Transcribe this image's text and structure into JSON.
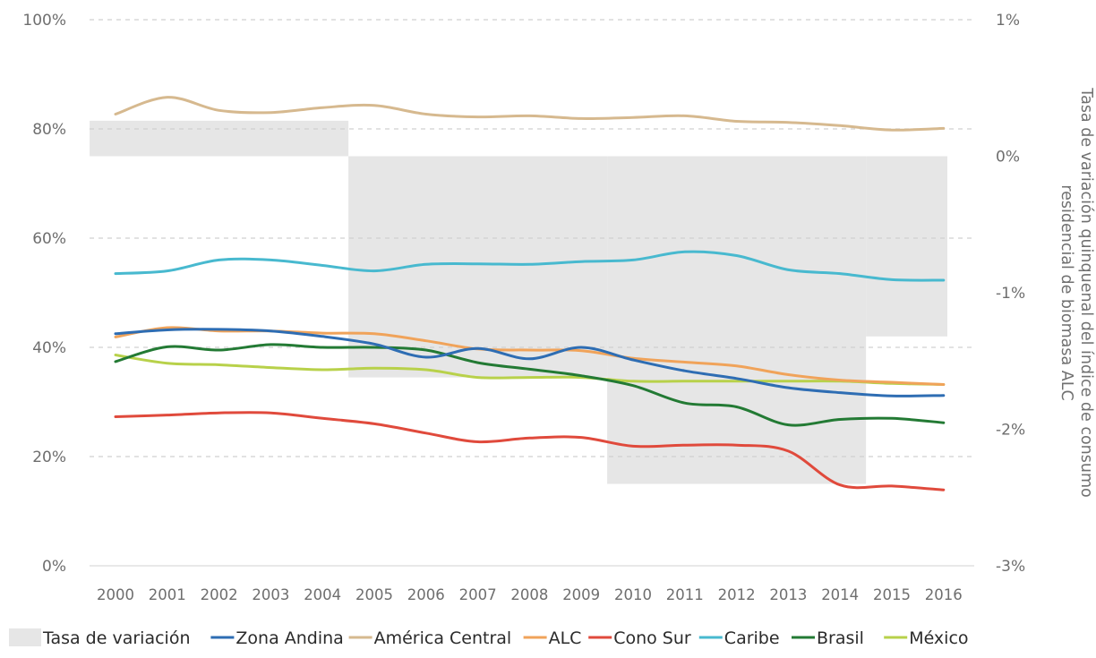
{
  "chart_data": {
    "type": "line",
    "categories": [
      "2000",
      "2001",
      "2002",
      "2003",
      "2004",
      "2005",
      "2006",
      "2007",
      "2008",
      "2009",
      "2010",
      "2011",
      "2012",
      "2013",
      "2014",
      "2015",
      "2016"
    ],
    "y_left": {
      "ticks": [
        "0%",
        "20%",
        "40%",
        "60%",
        "80%",
        "100%"
      ],
      "range": [
        0,
        100
      ]
    },
    "y_right": {
      "ticks": [
        "-3%",
        "-2%",
        "-1%",
        "0%",
        "1%"
      ],
      "range": [
        -3,
        1
      ],
      "label": "Tasa de variación quinquenal del índice de consumo residencial de biomasa ALC"
    },
    "grid": true,
    "legend_position": "bottom",
    "bars": {
      "name": "Tasa de variación",
      "color": "#e6e6e6",
      "segments": [
        {
          "from": "2000",
          "to": "2004",
          "value": 0.26
        },
        {
          "from": "2005",
          "to": "2009",
          "value": -1.62
        },
        {
          "from": "2010",
          "to": "2014",
          "value": -2.4
        },
        {
          "from": "2015",
          "to": "2016",
          "value": -1.32
        }
      ]
    },
    "series": [
      {
        "name": "Zona Andina",
        "color": "#2e6db3",
        "values": [
          42.5,
          43.2,
          43.3,
          43.0,
          42.0,
          40.6,
          38.2,
          39.8,
          37.9,
          40.0,
          37.7,
          35.7,
          34.3,
          32.6,
          31.7,
          31.1,
          31.2
        ]
      },
      {
        "name": "América Central",
        "color": "#d6b98f",
        "values": [
          82.7,
          85.8,
          83.4,
          83.0,
          83.9,
          84.3,
          82.7,
          82.2,
          82.4,
          81.9,
          82.1,
          82.4,
          81.4,
          81.2,
          80.6,
          79.8,
          80.1
        ]
      },
      {
        "name": "ALC",
        "color": "#f0a35a",
        "values": [
          41.9,
          43.6,
          43.0,
          43.0,
          42.6,
          42.5,
          41.2,
          39.7,
          39.5,
          39.4,
          38.0,
          37.3,
          36.6,
          35.0,
          34.0,
          33.6,
          33.2
        ]
      },
      {
        "name": "Cono Sur",
        "color": "#e04a3c",
        "values": [
          27.3,
          27.6,
          28.0,
          28.0,
          27.0,
          26.0,
          24.3,
          22.7,
          23.4,
          23.5,
          21.9,
          22.1,
          22.1,
          21.0,
          14.8,
          14.6,
          13.9
        ]
      },
      {
        "name": "Caribe",
        "color": "#48b9cf",
        "values": [
          53.5,
          54.0,
          56.0,
          56.0,
          55.0,
          54.0,
          55.2,
          55.3,
          55.2,
          55.7,
          56.0,
          57.5,
          56.8,
          54.2,
          53.5,
          52.4,
          52.3
        ]
      },
      {
        "name": "Brasil",
        "color": "#237a34",
        "values": [
          37.4,
          40.1,
          39.5,
          40.5,
          40.0,
          40.0,
          39.5,
          37.2,
          36.0,
          34.8,
          33.0,
          29.8,
          29.1,
          25.8,
          26.8,
          27.0,
          26.2
        ]
      },
      {
        "name": "México",
        "color": "#b8d14a",
        "values": [
          38.6,
          37.1,
          36.8,
          36.3,
          35.9,
          36.2,
          35.9,
          34.5,
          34.5,
          34.5,
          33.8,
          33.8,
          33.8,
          33.8,
          33.8,
          33.4,
          33.2
        ]
      }
    ]
  }
}
